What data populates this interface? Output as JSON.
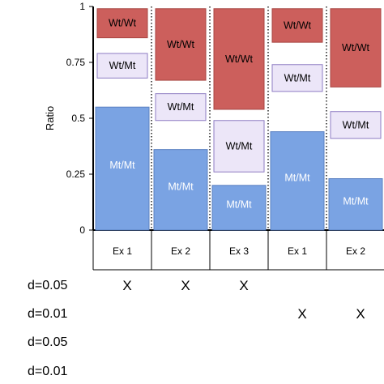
{
  "colors": {
    "mtmt_fill": "#7aa3e3",
    "mtmt_stroke": "#5a80c2",
    "wtmt_fill": "#ece6f8",
    "wtmt_stroke": "#8e7cc3",
    "wtwt_fill": "#cc5f5c",
    "wtwt_stroke": "#a84542"
  },
  "chart_data": {
    "type": "bar",
    "ylabel": "Ratio",
    "ylim": [
      0,
      1
    ],
    "yticks": [
      "0",
      "0.25",
      "0.5",
      "0.75",
      "1"
    ],
    "categories": [
      "Ex 1",
      "Ex 2",
      "Ex 3",
      "Ex 1",
      "Ex 2"
    ],
    "bars": [
      {
        "mtmt": {
          "label": "Mt/Mt",
          "bottom": 0,
          "top": 0.55
        },
        "wtmt": {
          "label": "Wt/Mt",
          "bottom": 0.68,
          "top": 0.79
        },
        "wtwt": {
          "label": "Wt/Wt",
          "bottom": 0.86,
          "top": 0.99
        }
      },
      {
        "mtmt": {
          "label": "Mt/Mt",
          "bottom": 0,
          "top": 0.36
        },
        "wtmt": {
          "label": "Wt/Mt",
          "bottom": 0.49,
          "top": 0.61
        },
        "wtwt": {
          "label": "Wt/Wt",
          "bottom": 0.67,
          "top": 0.99
        }
      },
      {
        "mtmt": {
          "label": "Mt/Mt",
          "bottom": 0,
          "top": 0.2
        },
        "wtmt": {
          "label": "Wt/Mt",
          "bottom": 0.26,
          "top": 0.49
        },
        "wtwt": {
          "label": "Wt/Wt",
          "bottom": 0.54,
          "top": 0.99
        }
      },
      {
        "mtmt": {
          "label": "Mt/Mt",
          "bottom": 0,
          "top": 0.44
        },
        "wtmt": {
          "label": "Wt/Mt",
          "bottom": 0.62,
          "top": 0.74
        },
        "wtwt": {
          "label": "Wt/Wt",
          "bottom": 0.84,
          "top": 0.99
        }
      },
      {
        "mtmt": {
          "label": "Mt/Mt",
          "bottom": 0,
          "top": 0.23
        },
        "wtmt": {
          "label": "Wt/Mt",
          "bottom": 0.41,
          "top": 0.53
        },
        "wtwt": {
          "label": "Wt/Wt",
          "bottom": 0.64,
          "top": 0.99
        }
      }
    ]
  },
  "table": {
    "rows": [
      {
        "label": "d=0.05",
        "marks": [
          "X",
          "X",
          "X",
          "",
          ""
        ]
      },
      {
        "label": "d=0.01",
        "marks": [
          "",
          "",
          "",
          "X",
          "X"
        ]
      },
      {
        "label": "d=0.05",
        "marks": [
          "",
          "",
          "",
          "",
          ""
        ]
      },
      {
        "label": "d=0.01",
        "marks": [
          "",
          "",
          "",
          "",
          ""
        ]
      }
    ]
  }
}
